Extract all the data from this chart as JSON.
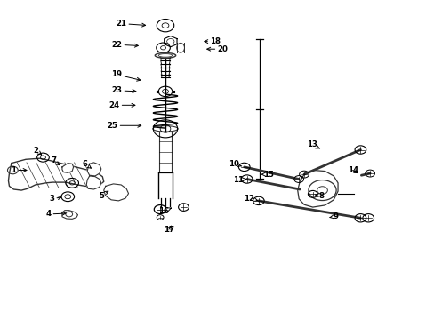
{
  "background_color": "#ffffff",
  "line_color": "#333333",
  "text_color": "#000000",
  "fig_width": 4.89,
  "fig_height": 3.6,
  "dpi": 100,
  "label_positions": {
    "1": [
      0.03,
      0.468,
      0.068,
      0.468
    ],
    "2": [
      0.082,
      0.53,
      0.1,
      0.51
    ],
    "3": [
      0.118,
      0.378,
      0.148,
      0.385
    ],
    "4": [
      0.11,
      0.33,
      0.158,
      0.333
    ],
    "5": [
      0.232,
      0.388,
      0.255,
      0.408
    ],
    "6": [
      0.195,
      0.488,
      0.215,
      0.468
    ],
    "7": [
      0.122,
      0.498,
      0.142,
      0.478
    ],
    "8": [
      0.74,
      0.388,
      0.718,
      0.393
    ],
    "9": [
      0.772,
      0.323,
      0.752,
      0.318
    ],
    "10": [
      0.538,
      0.488,
      0.562,
      0.478
    ],
    "11": [
      0.548,
      0.438,
      0.568,
      0.44
    ],
    "12": [
      0.572,
      0.38,
      0.595,
      0.372
    ],
    "13": [
      0.718,
      0.548,
      0.742,
      0.532
    ],
    "14": [
      0.812,
      0.468,
      0.83,
      0.454
    ],
    "15": [
      0.618,
      0.455,
      0.6,
      0.455
    ],
    "16": [
      0.375,
      0.34,
      0.395,
      0.35
    ],
    "17": [
      0.388,
      0.282,
      0.398,
      0.302
    ],
    "18": [
      0.495,
      0.872,
      0.462,
      0.872
    ],
    "19": [
      0.268,
      0.768,
      0.33,
      0.748
    ],
    "20": [
      0.512,
      0.848,
      0.468,
      0.848
    ],
    "21": [
      0.278,
      0.928,
      0.342,
      0.922
    ],
    "22": [
      0.268,
      0.862,
      0.325,
      0.858
    ],
    "23": [
      0.268,
      0.718,
      0.32,
      0.715
    ],
    "24": [
      0.262,
      0.672,
      0.318,
      0.672
    ],
    "25": [
      0.258,
      0.608,
      0.332,
      0.608
    ]
  }
}
